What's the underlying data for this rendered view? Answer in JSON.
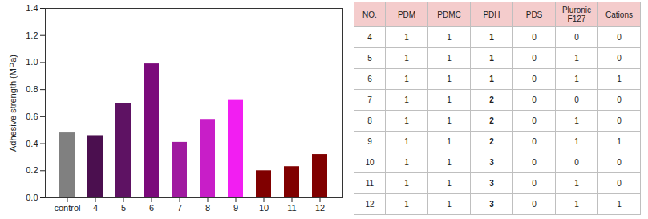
{
  "chart_data": {
    "type": "bar",
    "y_label": "Adhesive strength (MPa)",
    "categories": [
      "control",
      "4",
      "5",
      "6",
      "7",
      "8",
      "9",
      "10",
      "11",
      "12"
    ],
    "values": [
      0.48,
      0.46,
      0.7,
      0.99,
      0.41,
      0.58,
      0.72,
      0.2,
      0.23,
      0.32
    ],
    "colors": [
      "#808080",
      "#4b0f4f",
      "#5e1263",
      "#7b0a7b",
      "#a01aa0",
      "#c81ec8",
      "#f21ef2",
      "#800000",
      "#800000",
      "#800000"
    ],
    "ylim": [
      0,
      1.4
    ],
    "yticks": [
      {
        "value": 0,
        "label": "0.0"
      },
      0.2,
      0.4,
      0.6,
      0.8,
      {
        "value": 1,
        "label": "1.0"
      },
      1.2,
      1.4
    ],
    "grid": false
  },
  "table": {
    "header": [
      "NO.",
      "PDM",
      "PDMC",
      "PDH",
      "PDS",
      "Pluronic F127",
      "Cations"
    ],
    "rows": [
      [
        4,
        1,
        1,
        1,
        0,
        0,
        0
      ],
      [
        5,
        1,
        1,
        1,
        0,
        1,
        0
      ],
      [
        6,
        1,
        1,
        1,
        0,
        1,
        1
      ],
      [
        7,
        1,
        1,
        2,
        0,
        0,
        0
      ],
      [
        8,
        1,
        1,
        2,
        0,
        1,
        0
      ],
      [
        9,
        1,
        1,
        2,
        0,
        1,
        1
      ],
      [
        10,
        1,
        1,
        3,
        0,
        0,
        0
      ],
      [
        11,
        1,
        1,
        3,
        0,
        1,
        0
      ],
      [
        12,
        1,
        1,
        3,
        0,
        1,
        1
      ]
    ]
  }
}
